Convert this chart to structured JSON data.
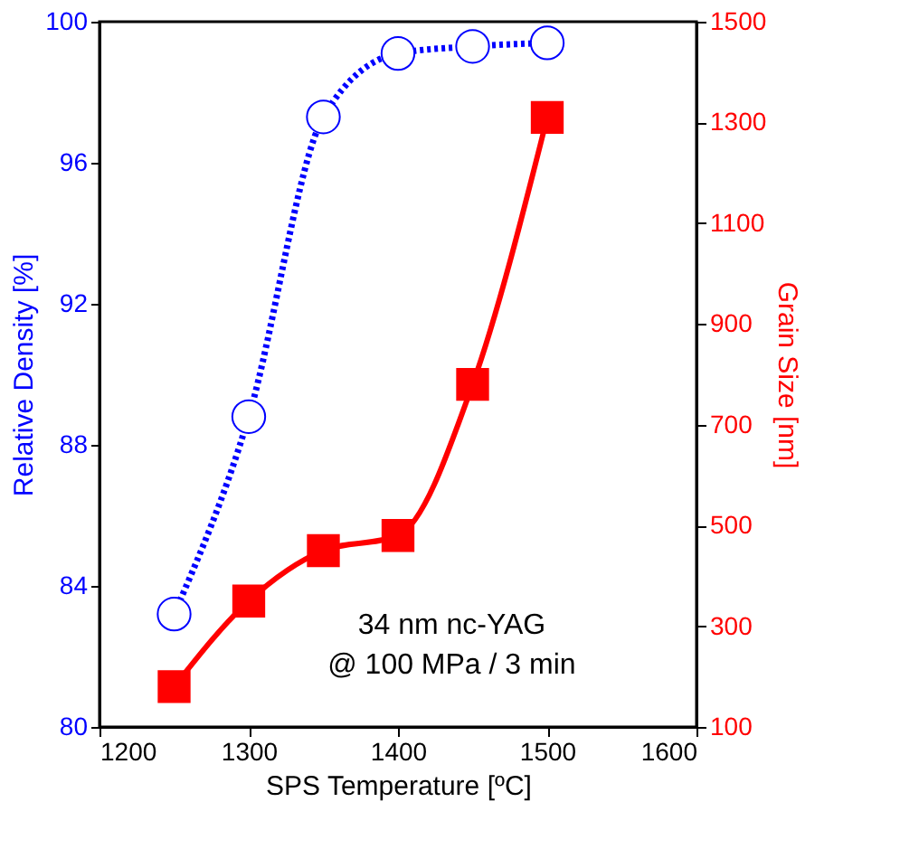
{
  "chart_data": {
    "type": "line",
    "xlabel": "SPS Temperature [ºC]",
    "ylabel": "Relative Density [%]",
    "y2label": "Grain Size [nm]",
    "x": [
      1250,
      1300,
      1350,
      1400,
      1450,
      1500
    ],
    "series": [
      {
        "color": "#0000ff",
        "values": [
          83.2,
          88.8,
          97.3,
          99.1,
          99.3,
          99.4
        ],
        "marker": "circle",
        "line_style": "dotted"
      },
      {
        "color": "#ff0000",
        "values": [
          180,
          350,
          450,
          480,
          780,
          1310
        ],
        "marker": "square",
        "line_style": "solid",
        "axis": "y2"
      }
    ],
    "xlim": [
      1200,
      1600
    ],
    "xticks": [
      1200,
      1300,
      1400,
      1500,
      1600
    ],
    "ylim": [
      80,
      100
    ],
    "yticks": [
      80,
      84,
      88,
      92,
      96,
      100
    ],
    "y2lim": [
      100,
      1500
    ],
    "y2ticks": [
      100,
      300,
      500,
      700,
      900,
      1100,
      1300,
      1500
    ],
    "annotations": [
      "34 nm nc-YAG\n@ 100 MPa / 3 min"
    ],
    "grid": false
  }
}
